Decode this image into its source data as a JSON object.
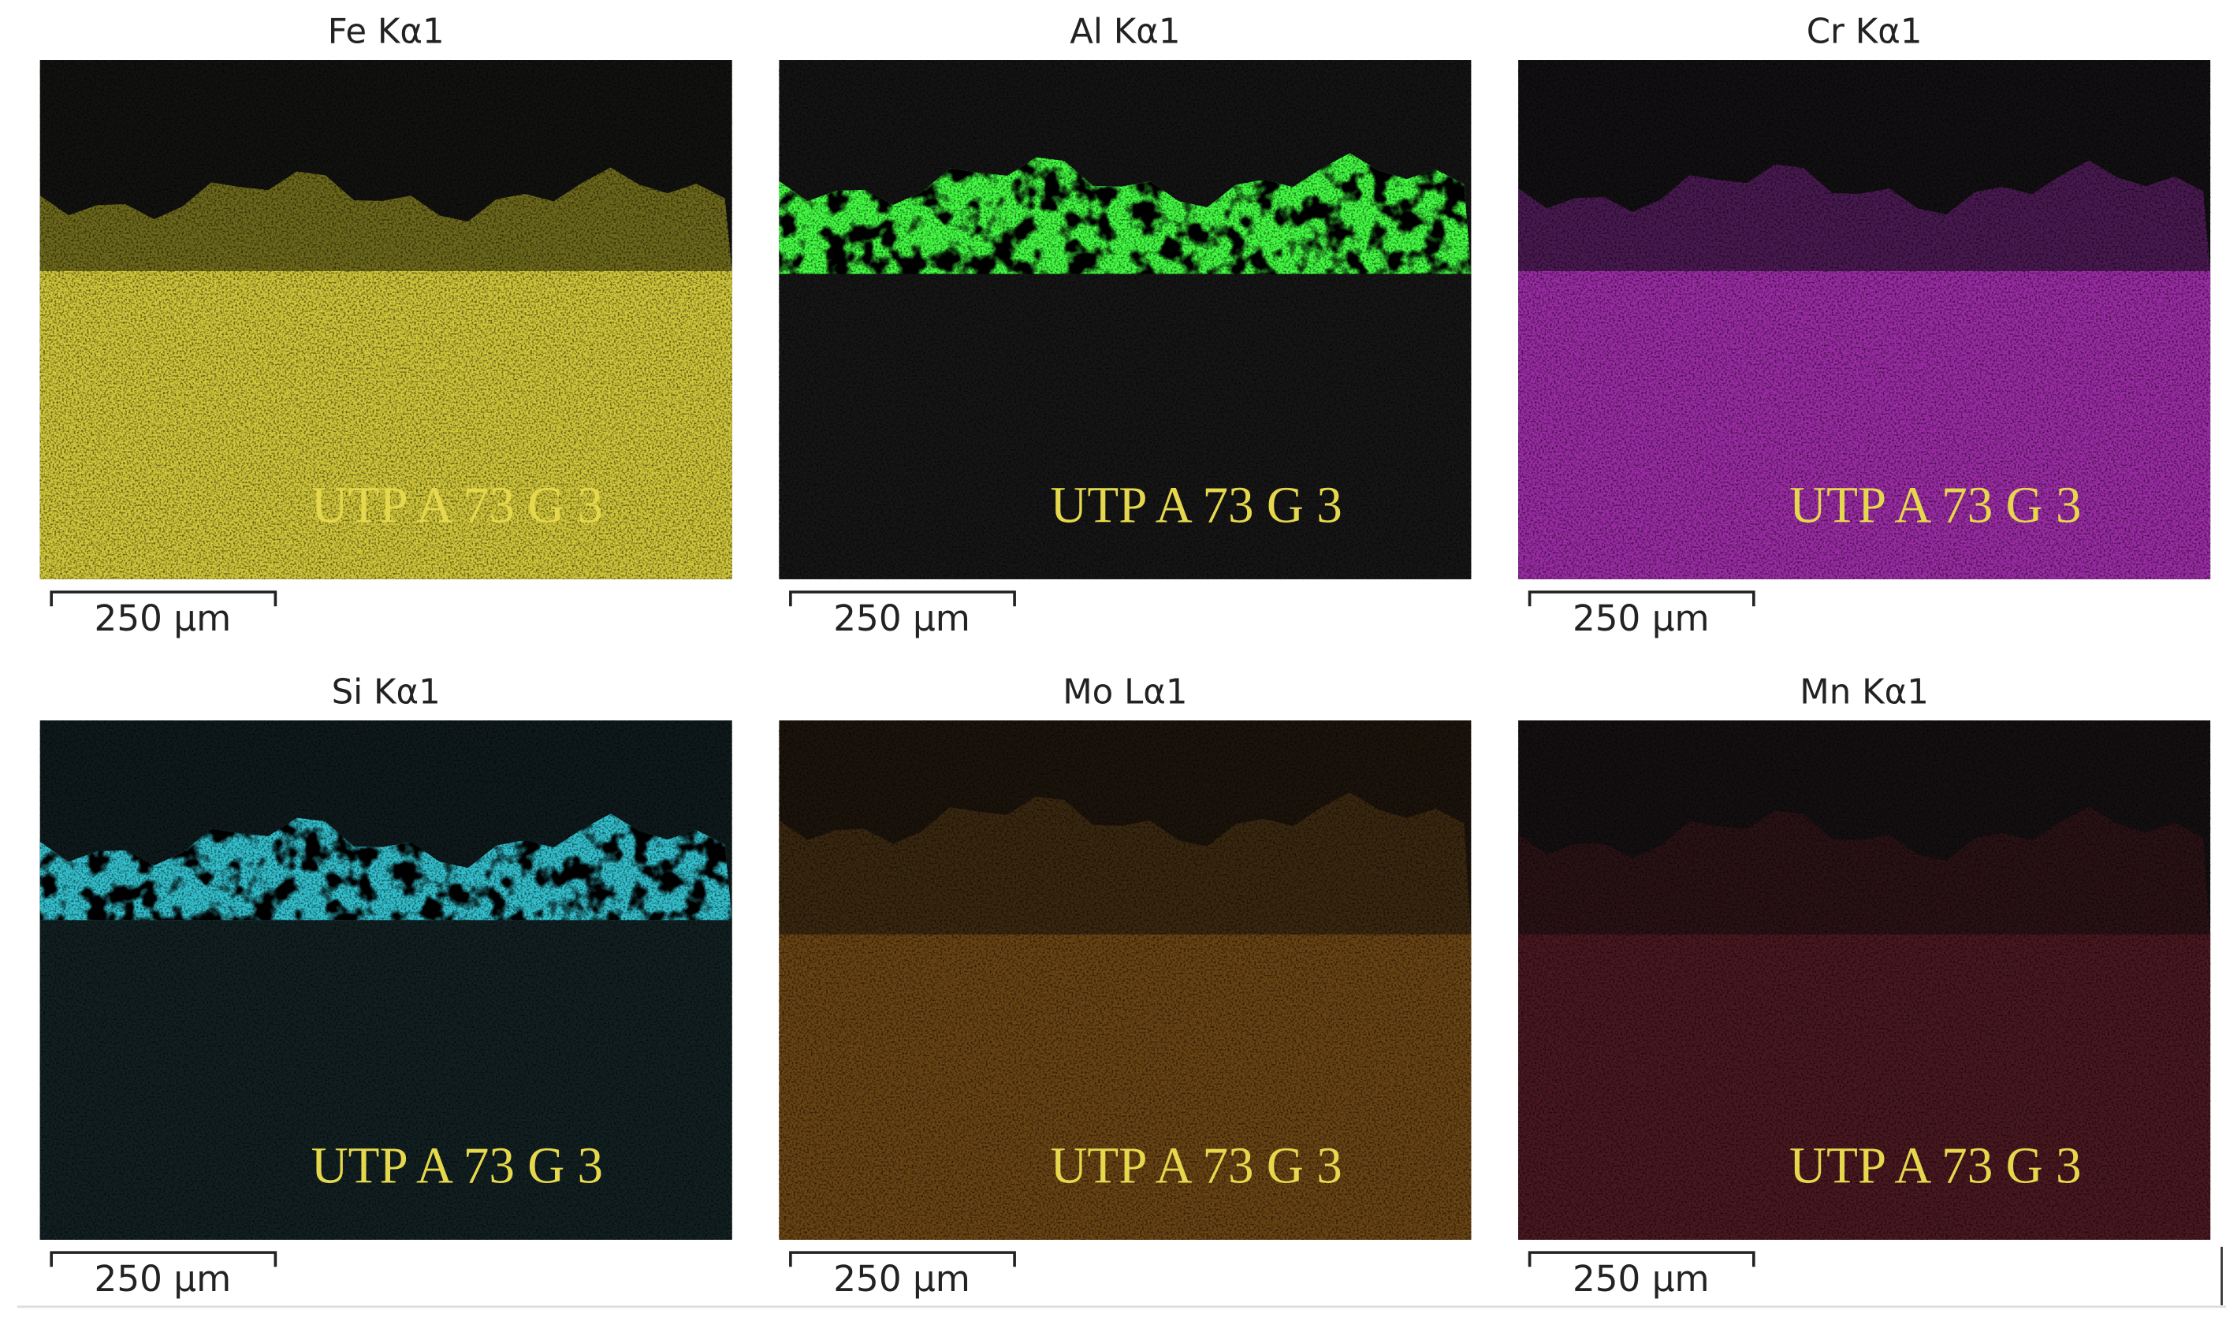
{
  "panels": [
    {
      "title": "Fe Kα1",
      "overlay": "UTP A 73 G 3",
      "scale_bar": "250 µm"
    },
    {
      "title": "Al Kα1",
      "overlay": "UTP A 73 G 3",
      "scale_bar": "250 µm"
    },
    {
      "title": "Cr Kα1",
      "overlay": "UTP A 73 G 3",
      "scale_bar": "250 µm"
    },
    {
      "title": "Si Kα1",
      "overlay": "UTP A 73 G 3",
      "scale_bar": "250 µm"
    },
    {
      "title": "Mo Lα1",
      "overlay": "UTP A 73 G 3",
      "scale_bar": "250 µm"
    },
    {
      "title": "Mn Kα1",
      "overlay": "UTP A 73 G 3",
      "scale_bar": "250 µm"
    }
  ]
}
